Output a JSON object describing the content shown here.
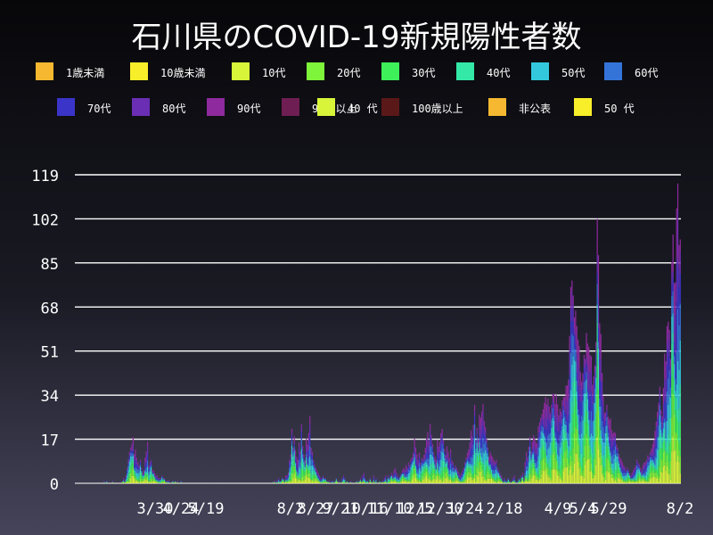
{
  "chart_data": {
    "type": "bar",
    "stacked": true,
    "title": "石川県のCOVID-19新規陽性者数",
    "xlabel": "",
    "ylabel": "",
    "ylim": [
      0,
      119
    ],
    "yticks": [
      0,
      17,
      34,
      51,
      68,
      85,
      102,
      119
    ],
    "grid": true,
    "legend_position": "top",
    "xticks": [
      "3/30",
      "4/24",
      "5/19",
      "8/2",
      "8/27",
      "9/21",
      "10/16",
      "11/10",
      "12/5",
      "12/30",
      "1/24",
      "2/18",
      "4/9",
      "5/4",
      "5/29",
      "8/2"
    ],
    "legend": [
      {
        "name": "1歳未満",
        "color": "#f5b830"
      },
      {
        "name": "10歳未満",
        "color": "#f8ee2a"
      },
      {
        "name": "10代",
        "color": "#d8f53a"
      },
      {
        "name": "20代",
        "color": "#7ef43a"
      },
      {
        "name": "30代",
        "color": "#3ef05a"
      },
      {
        "name": "40代",
        "color": "#34e8a8"
      },
      {
        "name": "50代",
        "color": "#33c8dc"
      },
      {
        "name": "60代",
        "color": "#3474d8"
      },
      {
        "name": "70代",
        "color": "#3a34c8"
      },
      {
        "name": "80代",
        "color": "#6a2eb4"
      },
      {
        "name": "90代",
        "color": "#8e2a9e"
      },
      {
        "name": "90歳以上",
        "color": "#6e1e52"
      },
      {
        "name": "100歳以上",
        "color": "#5a1818"
      },
      {
        "name": "非公表",
        "color": "#f5b830"
      },
      {
        "name": "50 代",
        "color": "#f8ee2a"
      },
      {
        "name": "40 代",
        "color": "#d8f53a"
      }
    ],
    "series_order": [
      "10代",
      "20代",
      "30代",
      "40代",
      "50代",
      "60代",
      "70代",
      "80代",
      "90代"
    ],
    "series_colors": [
      "#d8f53a",
      "#7ef43a",
      "#3ef05a",
      "#34e8a8",
      "#33c8dc",
      "#3474d8",
      "#3a34c8",
      "#6a2eb4",
      "#8e2a9e"
    ],
    "daily_totals": [
      0,
      0,
      0,
      0,
      0,
      0,
      0,
      0,
      0,
      0,
      0,
      0,
      0,
      0,
      0,
      0,
      0,
      0,
      0,
      0,
      0,
      0,
      0,
      0,
      1,
      0,
      1,
      0,
      0,
      0,
      0,
      1,
      0,
      0,
      0,
      0,
      0,
      0,
      0,
      1,
      2,
      1,
      3,
      6,
      9,
      12,
      14,
      15,
      18,
      11,
      13,
      10,
      8,
      7,
      9,
      6,
      4,
      5,
      10,
      12,
      16,
      7,
      8,
      9,
      5,
      5,
      4,
      3,
      3,
      2,
      2,
      2,
      3,
      2,
      2,
      1,
      1,
      1,
      1,
      0,
      0,
      1,
      0,
      1,
      0,
      1,
      0,
      0,
      1,
      0,
      0,
      0,
      0,
      0,
      0,
      0,
      0,
      0,
      0,
      0,
      0,
      0,
      0,
      0,
      0,
      0,
      0,
      0,
      0,
      0,
      0,
      0,
      0,
      0,
      0,
      0,
      0,
      0,
      0,
      0,
      0,
      0,
      0,
      0,
      0,
      0,
      0,
      0,
      0,
      0,
      0,
      0,
      0,
      0,
      0,
      0,
      0,
      0,
      0,
      0,
      0,
      0,
      0,
      0,
      0,
      0,
      0,
      0,
      0,
      0,
      0,
      0,
      0,
      0,
      0,
      0,
      0,
      0,
      0,
      0,
      0,
      0,
      0,
      0,
      0,
      1,
      0,
      1,
      1,
      2,
      1,
      1,
      2,
      2,
      1,
      3,
      3,
      4,
      9,
      11,
      21,
      14,
      18,
      13,
      10,
      9,
      16,
      12,
      23,
      14,
      11,
      9,
      17,
      15,
      19,
      26,
      14,
      12,
      9,
      7,
      6,
      5,
      4,
      3,
      2,
      2,
      3,
      2,
      2,
      1,
      1,
      1,
      0,
      1,
      1,
      0,
      1,
      2,
      1,
      0,
      1,
      0,
      2,
      3,
      2,
      0,
      1,
      0,
      0,
      1,
      0,
      0,
      0,
      0,
      1,
      0,
      1,
      2,
      1,
      3,
      4,
      2,
      1,
      1,
      0,
      2,
      1,
      0,
      3,
      1,
      2,
      0,
      0,
      1,
      0,
      1,
      1,
      2,
      3,
      1,
      3,
      2,
      3,
      4,
      3,
      5,
      6,
      4,
      3,
      2,
      3,
      4,
      5,
      6,
      5,
      7,
      6,
      8,
      7,
      9,
      10,
      12,
      17,
      14,
      11,
      9,
      12,
      8,
      10,
      9,
      11,
      14,
      17,
      20,
      16,
      23,
      19,
      15,
      12,
      10,
      9,
      17,
      14,
      16,
      19,
      21,
      17,
      13,
      11,
      14,
      12,
      10,
      13,
      9,
      8,
      6,
      7,
      6,
      5,
      4,
      3,
      4,
      5,
      6,
      8,
      10,
      12,
      13,
      16,
      20,
      18,
      23,
      30,
      17,
      21,
      17,
      27,
      25,
      28,
      30,
      24,
      22,
      17,
      14,
      10,
      12,
      11,
      10,
      9,
      8,
      9,
      6,
      5,
      4,
      3,
      2,
      1,
      2,
      1,
      1,
      2,
      1,
      0,
      1,
      2,
      3,
      1,
      0,
      1,
      2,
      1,
      3,
      4,
      2,
      8,
      12,
      10,
      14,
      18,
      12,
      16,
      19,
      17,
      16,
      15,
      22,
      24,
      25,
      27,
      28,
      31,
      34,
      30,
      33,
      29,
      27,
      31,
      34,
      35,
      30,
      34,
      31,
      26,
      29,
      27,
      32,
      34,
      33,
      38,
      37,
      40,
      58,
      75,
      79,
      71,
      64,
      68,
      60,
      56,
      52,
      43,
      40,
      42,
      50,
      47,
      58,
      55,
      52,
      50,
      48,
      38,
      42,
      45,
      55,
      100,
      88,
      63,
      57,
      43,
      33,
      27,
      28,
      30,
      26,
      24,
      25,
      21,
      19,
      20,
      19,
      15,
      14,
      11,
      10,
      9,
      8,
      7,
      6,
      5,
      6,
      5,
      4,
      3,
      4,
      5,
      6,
      7,
      9,
      8,
      7,
      6,
      5,
      7,
      8,
      8,
      9,
      11,
      10,
      12,
      13,
      15,
      17,
      20,
      24,
      27,
      31,
      38,
      28,
      26,
      36,
      50,
      48,
      60,
      63,
      58,
      48,
      87,
      95,
      78,
      76,
      106,
      118,
      91,
      95,
      105,
      110,
      92,
      80,
      68,
      30
    ],
    "n_days": 504
  }
}
